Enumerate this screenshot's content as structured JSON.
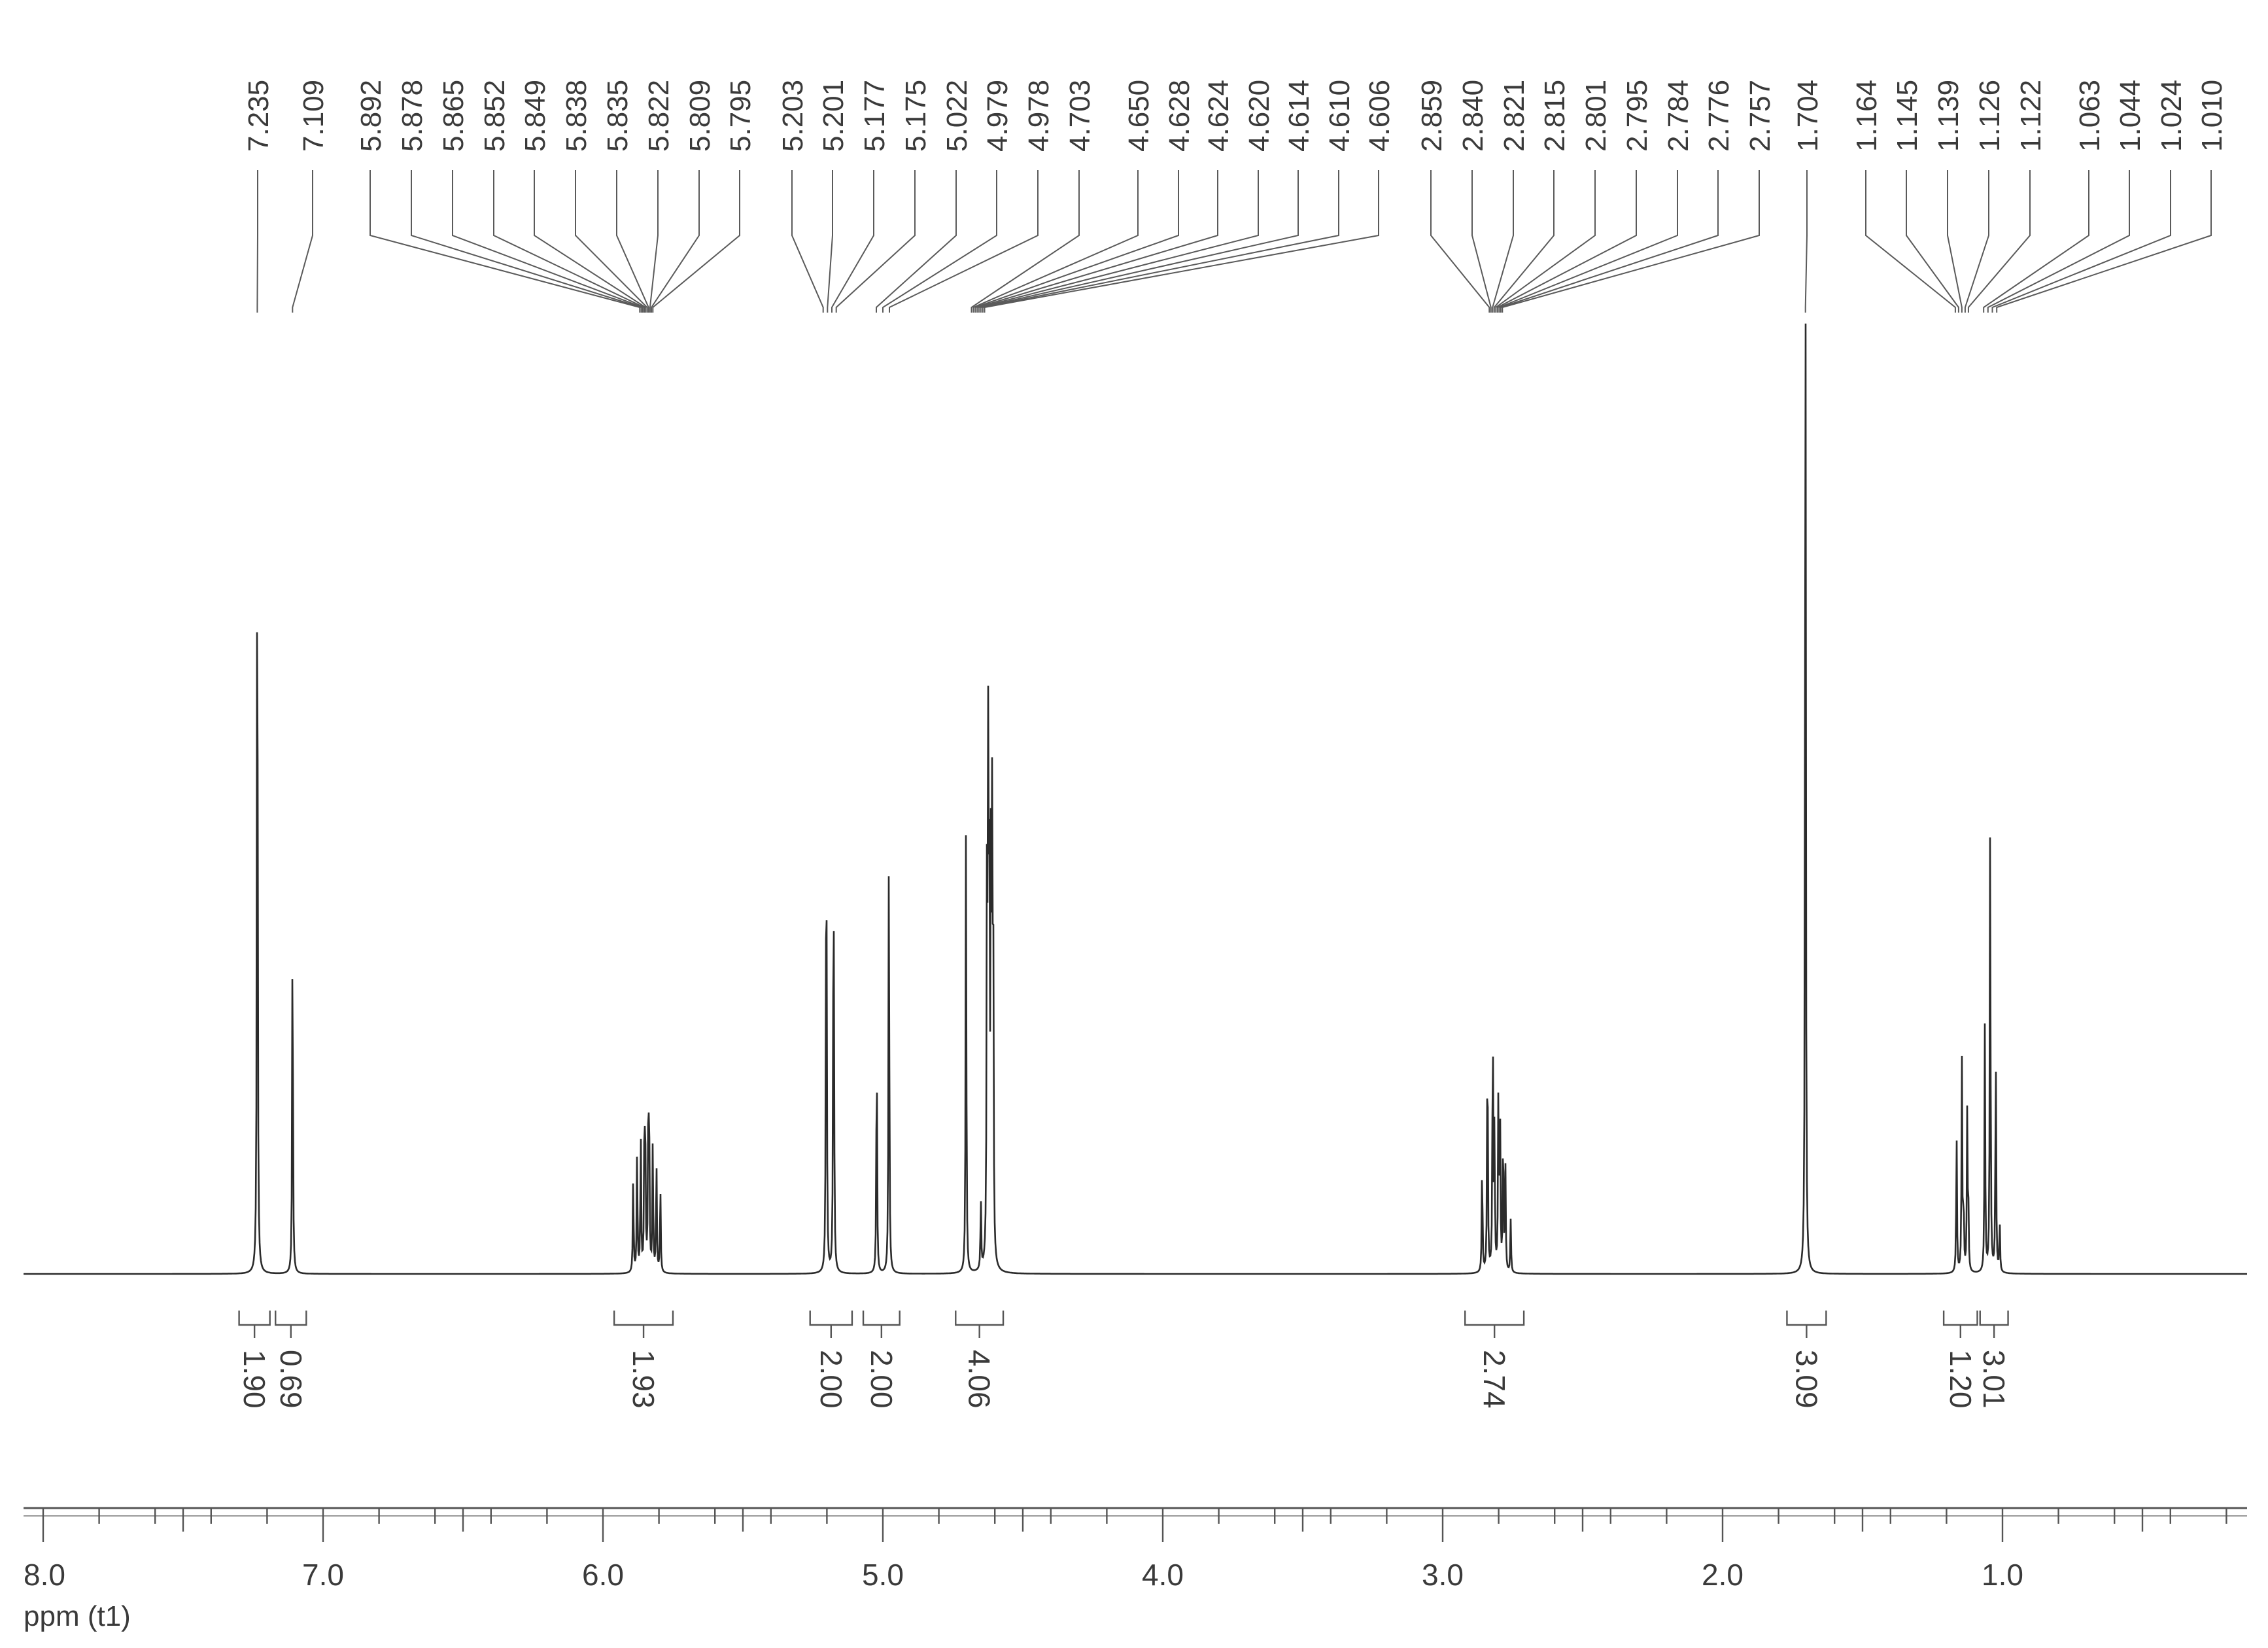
{
  "chart_data": {
    "type": "line",
    "title": "",
    "xlabel": "ppm (t1)",
    "ylabel": "",
    "xlim": [
      8.0,
      0.2
    ],
    "x_axis_direction": "descending",
    "grid": false,
    "legend": "none",
    "colors": {
      "trace": "#2b2b2b",
      "text": "#3a3a3a",
      "leaders": "#5a5a5a"
    },
    "x_ticks": [
      "8.0",
      "7.0",
      "6.0",
      "5.0",
      "4.0",
      "3.0",
      "2.0",
      "1.0"
    ],
    "peak_labels": [
      {
        "text": "7.235",
        "shift": 7.235
      },
      {
        "text": "7.109",
        "shift": 7.109
      },
      {
        "text": "5.892",
        "shift": 5.892
      },
      {
        "text": "5.878",
        "shift": 5.878
      },
      {
        "text": "5.865",
        "shift": 5.865
      },
      {
        "text": "5.852",
        "shift": 5.852
      },
      {
        "text": "5.849",
        "shift": 5.849
      },
      {
        "text": "5.838",
        "shift": 5.838
      },
      {
        "text": "5.835",
        "shift": 5.835
      },
      {
        "text": "5.822",
        "shift": 5.822
      },
      {
        "text": "5.809",
        "shift": 5.809
      },
      {
        "text": "5.795",
        "shift": 5.795
      },
      {
        "text": "5.203",
        "shift": 5.203
      },
      {
        "text": "5.201",
        "shift": 5.201
      },
      {
        "text": "5.177",
        "shift": 5.177
      },
      {
        "text": "5.175",
        "shift": 5.175
      },
      {
        "text": "5.022",
        "shift": 5.022
      },
      {
        "text": "4.979",
        "shift": 4.979
      },
      {
        "text": "4.978",
        "shift": 4.978
      },
      {
        "text": "4.703",
        "shift": 4.703
      },
      {
        "text": "4.650",
        "shift": 4.65
      },
      {
        "text": "4.628",
        "shift": 4.628
      },
      {
        "text": "4.624",
        "shift": 4.624
      },
      {
        "text": "4.620",
        "shift": 4.62
      },
      {
        "text": "4.614",
        "shift": 4.614
      },
      {
        "text": "4.610",
        "shift": 4.61
      },
      {
        "text": "4.606",
        "shift": 4.606
      },
      {
        "text": "2.859",
        "shift": 2.859
      },
      {
        "text": "2.840",
        "shift": 2.84
      },
      {
        "text": "2.821",
        "shift": 2.821
      },
      {
        "text": "2.815",
        "shift": 2.815
      },
      {
        "text": "2.801",
        "shift": 2.801
      },
      {
        "text": "2.795",
        "shift": 2.795
      },
      {
        "text": "2.784",
        "shift": 2.784
      },
      {
        "text": "2.776",
        "shift": 2.776
      },
      {
        "text": "2.757",
        "shift": 2.757
      },
      {
        "text": "1.704",
        "shift": 1.704
      },
      {
        "text": "1.164",
        "shift": 1.164
      },
      {
        "text": "1.145",
        "shift": 1.145
      },
      {
        "text": "1.139",
        "shift": 1.139
      },
      {
        "text": "1.126",
        "shift": 1.126
      },
      {
        "text": "1.122",
        "shift": 1.122
      },
      {
        "text": "1.063",
        "shift": 1.063
      },
      {
        "text": "1.044",
        "shift": 1.044
      },
      {
        "text": "1.024",
        "shift": 1.024
      },
      {
        "text": "1.010",
        "shift": 1.01
      }
    ],
    "peaks": [
      {
        "shift": 7.235,
        "intensity": 1.0
      },
      {
        "shift": 7.109,
        "intensity": 0.42
      },
      {
        "shift": 5.892,
        "intensity": 0.11
      },
      {
        "shift": 5.878,
        "intensity": 0.14
      },
      {
        "shift": 5.865,
        "intensity": 0.16
      },
      {
        "shift": 5.852,
        "intensity": 0.15
      },
      {
        "shift": 5.849,
        "intensity": 0.15
      },
      {
        "shift": 5.838,
        "intensity": 0.17
      },
      {
        "shift": 5.835,
        "intensity": 0.16
      },
      {
        "shift": 5.822,
        "intensity": 0.15
      },
      {
        "shift": 5.809,
        "intensity": 0.13
      },
      {
        "shift": 5.795,
        "intensity": 0.1
      },
      {
        "shift": 5.203,
        "intensity": 0.29
      },
      {
        "shift": 5.201,
        "intensity": 0.29
      },
      {
        "shift": 5.177,
        "intensity": 0.27
      },
      {
        "shift": 5.175,
        "intensity": 0.27
      },
      {
        "shift": 5.022,
        "intensity": 0.28
      },
      {
        "shift": 4.979,
        "intensity": 0.26
      },
      {
        "shift": 4.978,
        "intensity": 0.26
      },
      {
        "shift": 4.703,
        "intensity": 0.51
      },
      {
        "shift": 4.65,
        "intensity": 0.08
      },
      {
        "shift": 4.628,
        "intensity": 0.44
      },
      {
        "shift": 4.624,
        "intensity": 0.52
      },
      {
        "shift": 4.62,
        "intensity": 0.5
      },
      {
        "shift": 4.614,
        "intensity": 0.44
      },
      {
        "shift": 4.61,
        "intensity": 0.45
      },
      {
        "shift": 4.606,
        "intensity": 0.42
      },
      {
        "shift": 2.859,
        "intensity": 0.13
      },
      {
        "shift": 2.84,
        "intensity": 0.29
      },
      {
        "shift": 2.821,
        "intensity": 0.3
      },
      {
        "shift": 2.815,
        "intensity": 0.16
      },
      {
        "shift": 2.801,
        "intensity": 0.2
      },
      {
        "shift": 2.795,
        "intensity": 0.18
      },
      {
        "shift": 2.784,
        "intensity": 0.17
      },
      {
        "shift": 2.776,
        "intensity": 0.12
      },
      {
        "shift": 2.757,
        "intensity": 0.06
      },
      {
        "shift": 1.704,
        "intensity": 1.3
      },
      {
        "shift": 1.164,
        "intensity": 0.16
      },
      {
        "shift": 1.145,
        "intensity": 0.24
      },
      {
        "shift": 1.139,
        "intensity": 0.08
      },
      {
        "shift": 1.126,
        "intensity": 0.18
      },
      {
        "shift": 1.122,
        "intensity": 0.07
      },
      {
        "shift": 1.063,
        "intensity": 0.28
      },
      {
        "shift": 1.044,
        "intensity": 0.52
      },
      {
        "shift": 1.024,
        "intensity": 0.26
      },
      {
        "shift": 1.01,
        "intensity": 0.06
      }
    ],
    "integrals": [
      {
        "label": "1.90",
        "from": 7.3,
        "to": 7.19
      },
      {
        "label": "0.69",
        "from": 7.17,
        "to": 7.06
      },
      {
        "label": "1.93",
        "from": 5.96,
        "to": 5.75
      },
      {
        "label": "2.00",
        "from": 5.26,
        "to": 5.11
      },
      {
        "label": "2.00",
        "from": 5.07,
        "to": 4.94
      },
      {
        "label": "4.06",
        "from": 4.74,
        "to": 4.57
      },
      {
        "label": "2.74",
        "from": 2.92,
        "to": 2.71
      },
      {
        "label": "3.09",
        "from": 1.77,
        "to": 1.63
      },
      {
        "label": "1.20",
        "from": 1.21,
        "to": 1.09
      },
      {
        "label": "3.01",
        "from": 1.08,
        "to": 0.98
      }
    ]
  }
}
